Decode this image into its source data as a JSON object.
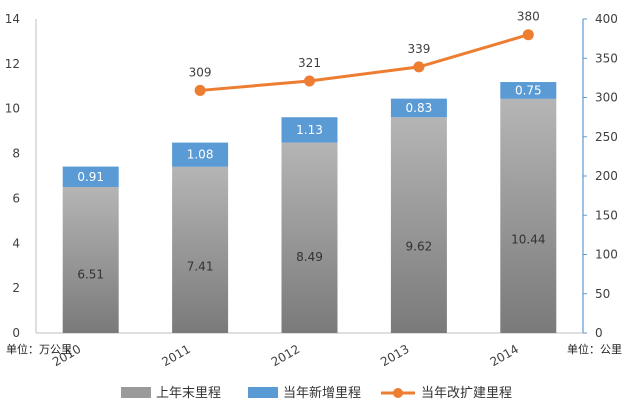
{
  "chart_data": {
    "type": "bar",
    "categories": [
      "2010",
      "2011",
      "2012",
      "2013",
      "2014"
    ],
    "series": [
      {
        "name": "上年末里程",
        "type": "stacked-bar",
        "axis": "left",
        "values": [
          6.51,
          7.41,
          8.49,
          9.62,
          10.44
        ],
        "color": "#8c8c8c"
      },
      {
        "name": "当年新增里程",
        "type": "stacked-bar",
        "axis": "left",
        "values": [
          0.91,
          1.08,
          1.13,
          0.83,
          0.75
        ],
        "color": "#5b9bd5"
      },
      {
        "name": "当年改扩建里程",
        "type": "line",
        "axis": "right",
        "values": [
          null,
          309,
          321,
          339,
          380
        ],
        "color": "#ed7d31"
      }
    ],
    "y_left": {
      "unit_label": "单位：万公里",
      "range": [
        0,
        14
      ],
      "ticks": [
        0,
        2,
        4,
        6,
        8,
        10,
        12,
        14
      ]
    },
    "y_right": {
      "unit_label": "单位：公里",
      "range": [
        0,
        400
      ],
      "ticks": [
        0,
        50,
        100,
        150,
        200,
        250,
        300,
        350,
        400
      ]
    },
    "grid": false,
    "legend_position": "bottom"
  }
}
